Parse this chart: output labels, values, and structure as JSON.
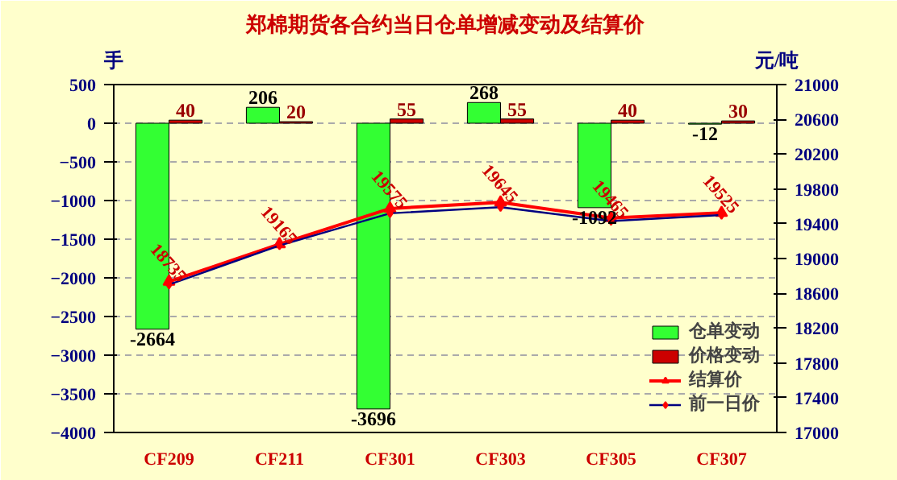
{
  "chart_data": {
    "type": "bar",
    "title": "郑棉期货各合约当日仓单增减变动及结算价",
    "ylabel": "手",
    "y2label": "元/吨",
    "categories": [
      "CF209",
      "CF211",
      "CF301",
      "CF303",
      "CF305",
      "CF307"
    ],
    "series": [
      {
        "name": "仓单变动",
        "color": "#33ff33",
        "values": [
          -2664,
          206,
          -3696,
          268,
          -1092,
          -12
        ],
        "data_labels": true
      },
      {
        "name": "价格变动",
        "color": "#cc0000",
        "values": [
          40,
          20,
          55,
          55,
          40,
          30
        ],
        "data_labels": true
      },
      {
        "name": "结算价",
        "type": "line",
        "axis": "y2",
        "color": "#ff0000",
        "marker": "triangle",
        "values": [
          18735,
          19165,
          19575,
          19645,
          19465,
          19525
        ],
        "data_labels": true
      },
      {
        "name": "前一日价",
        "type": "line",
        "axis": "y2",
        "color": "#000080",
        "marker": "diamond",
        "values": [
          18700,
          19150,
          19520,
          19590,
          19430,
          19500
        ]
      }
    ],
    "ylim": [
      -4000,
      500
    ],
    "yticks": [
      -4000,
      -3500,
      -3000,
      -2500,
      -2000,
      -1500,
      -1000,
      -500,
      0,
      500
    ],
    "y2lim": [
      17000,
      21000
    ],
    "y2ticks": [
      17000,
      17400,
      17800,
      18200,
      18600,
      19000,
      19400,
      19800,
      20200,
      20600,
      21000
    ],
    "grid": "y",
    "legend": "bottom right"
  }
}
